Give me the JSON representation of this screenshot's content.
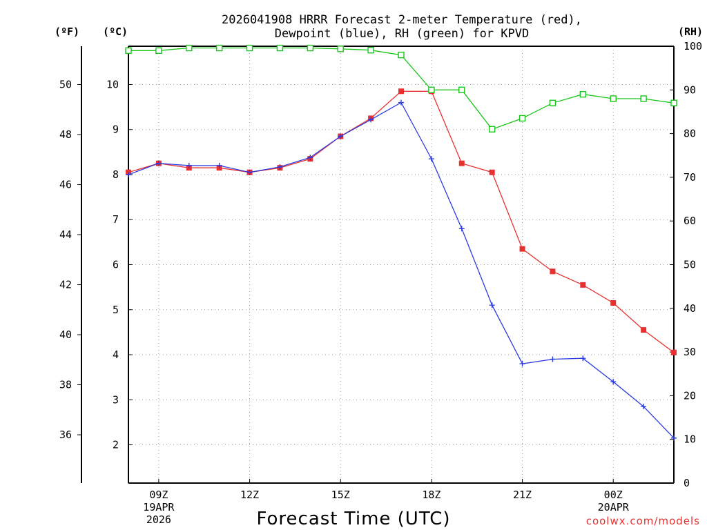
{
  "chart_data": {
    "type": "line",
    "title_line1": "2026041908 HRRR Forecast 2-meter Temperature (red),",
    "title_line2": "Dewpoint (blue), RH (green) for KPVD",
    "xlabel": "Forecast Time (UTC)",
    "credit": "coolwx.com/models",
    "units": {
      "fahrenheit": "(ºF)",
      "celsius": "(ºC)",
      "rh": "(RH)"
    },
    "x_ticks": [
      {
        "hour": 9,
        "lines": [
          "09Z",
          "19APR",
          "2026"
        ]
      },
      {
        "hour": 12,
        "lines": [
          "12Z"
        ]
      },
      {
        "hour": 15,
        "lines": [
          "15Z"
        ]
      },
      {
        "hour": 18,
        "lines": [
          "18Z"
        ]
      },
      {
        "hour": 21,
        "lines": [
          "21Z"
        ]
      },
      {
        "hour": 24,
        "lines": [
          "00Z",
          "20APR"
        ]
      }
    ],
    "xlim": [
      8,
      26
    ],
    "ylim_c": [
      1.15,
      10.85
    ],
    "y_ticks_c": [
      "2",
      "3",
      "4",
      "5",
      "6",
      "7",
      "8",
      "9",
      "10"
    ],
    "y_ticks_f": [
      "36",
      "38",
      "40",
      "42",
      "44",
      "46",
      "48",
      "50"
    ],
    "ylim_rh": [
      0,
      100
    ],
    "y_ticks_rh": [
      "0",
      "10",
      "20",
      "30",
      "40",
      "50",
      "60",
      "70",
      "80",
      "90",
      "100"
    ],
    "colors": {
      "temperature": "#e83030",
      "dewpoint": "#2a3be0",
      "rh": "#17c617",
      "grid": "#9a9a9a"
    },
    "x": [
      8,
      9,
      10,
      11,
      12,
      13,
      14,
      15,
      16,
      17,
      18,
      19,
      20,
      21,
      22,
      23,
      24,
      25,
      26
    ],
    "series": [
      {
        "name": "Temperature (°C)",
        "key": "temperature",
        "marker": "filled-square",
        "values": [
          8.05,
          8.25,
          8.15,
          8.15,
          8.05,
          8.15,
          8.35,
          8.85,
          9.25,
          9.85,
          9.85,
          8.25,
          8.05,
          6.35,
          5.85,
          5.55,
          5.15,
          4.55,
          4.05
        ]
      },
      {
        "name": "Dewpoint (°C)",
        "key": "dewpoint",
        "marker": "plus",
        "values": [
          8.0,
          8.25,
          8.2,
          8.2,
          8.05,
          8.17,
          8.38,
          8.85,
          9.22,
          9.6,
          8.35,
          6.8,
          5.1,
          3.8,
          3.9,
          3.92,
          3.4,
          2.85,
          2.15
        ]
      },
      {
        "name": "RH (%)",
        "key": "rh",
        "marker": "open-square",
        "values": [
          99,
          99,
          99.6,
          99.6,
          99.6,
          99.6,
          99.6,
          99.4,
          99.1,
          98,
          90,
          90,
          81,
          83.5,
          87,
          89,
          88,
          88,
          87
        ]
      }
    ]
  }
}
